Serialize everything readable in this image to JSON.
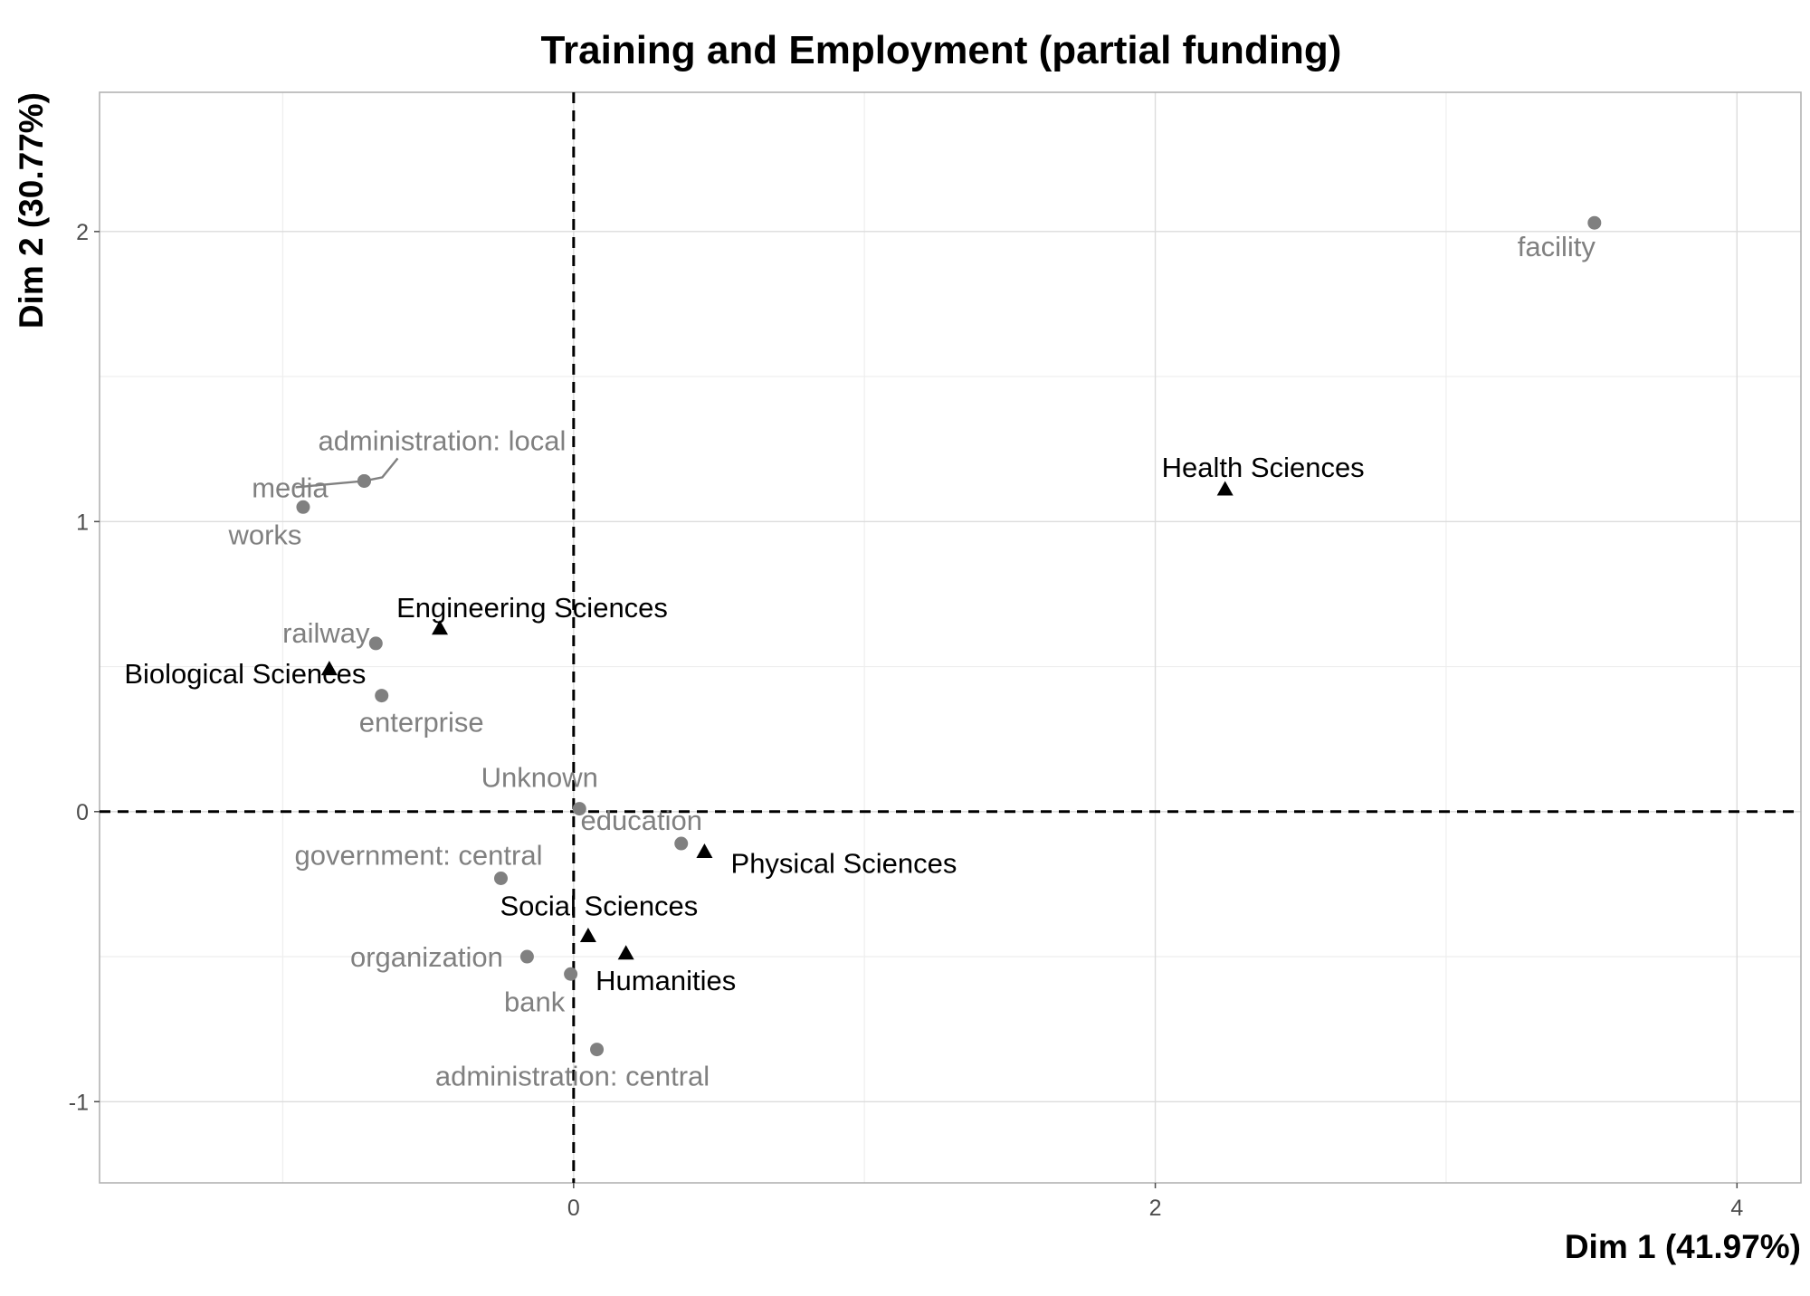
{
  "chart_data": {
    "type": "scatter",
    "title": "Training and Employment (partial funding)",
    "xlabel": "Dim 1 (41.97%)",
    "ylabel": "Dim 2 (30.77%)",
    "xlim": [
      -1.63,
      4.22
    ],
    "ylim": [
      -1.28,
      2.48
    ],
    "x_ticks": [
      0,
      2,
      4
    ],
    "y_ticks": [
      -1,
      0,
      1,
      2
    ],
    "grid": true,
    "reference_lines": {
      "x": 0,
      "y": 0,
      "style": "dashed"
    },
    "series": [
      {
        "marker": "circle",
        "color": "#808080",
        "points": [
          {
            "label": "facility",
            "x": 3.51,
            "y": 2.03
          },
          {
            "label": "administration: local",
            "x": -0.72,
            "y": 1.14
          },
          {
            "label": "media",
            "x": -0.72,
            "y": 1.14
          },
          {
            "label": "works",
            "x": -0.93,
            "y": 1.05
          },
          {
            "label": "railway",
            "x": -0.68,
            "y": 0.58
          },
          {
            "label": "enterprise",
            "x": -0.66,
            "y": 0.4
          },
          {
            "label": "Unknown",
            "x": 0.02,
            "y": 0.01
          },
          {
            "label": "education",
            "x": 0.37,
            "y": -0.11
          },
          {
            "label": "government: central",
            "x": -0.25,
            "y": -0.23
          },
          {
            "label": "organization",
            "x": -0.16,
            "y": -0.5
          },
          {
            "label": "bank",
            "x": -0.01,
            "y": -0.56
          },
          {
            "label": "administration: central",
            "x": 0.08,
            "y": -0.82
          }
        ]
      },
      {
        "marker": "triangle",
        "color": "#000000",
        "points": [
          {
            "label": "Health Sciences",
            "x": 2.24,
            "y": 1.11
          },
          {
            "label": "Engineering Sciences",
            "x": -0.46,
            "y": 0.63
          },
          {
            "label": "Biological Sciences",
            "x": -0.84,
            "y": 0.49
          },
          {
            "label": "Physical Sciences",
            "x": 0.45,
            "y": -0.14
          },
          {
            "label": "Social Sciences",
            "x": 0.05,
            "y": -0.43
          },
          {
            "label": "Humanities",
            "x": 0.18,
            "y": -0.49
          }
        ]
      }
    ]
  }
}
